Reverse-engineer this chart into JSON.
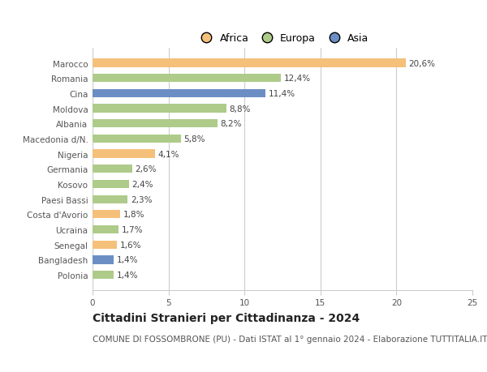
{
  "categories": [
    "Polonia",
    "Bangladesh",
    "Senegal",
    "Ucraina",
    "Costa d'Avorio",
    "Paesi Bassi",
    "Kosovo",
    "Germania",
    "Nigeria",
    "Macedonia d/N.",
    "Albania",
    "Moldova",
    "Cina",
    "Romania",
    "Marocco"
  ],
  "values": [
    1.4,
    1.4,
    1.6,
    1.7,
    1.8,
    2.3,
    2.4,
    2.6,
    4.1,
    5.8,
    8.2,
    8.8,
    11.4,
    12.4,
    20.6
  ],
  "labels": [
    "1,4%",
    "1,4%",
    "1,6%",
    "1,7%",
    "1,8%",
    "2,3%",
    "2,4%",
    "2,6%",
    "4,1%",
    "5,8%",
    "8,2%",
    "8,8%",
    "11,4%",
    "12,4%",
    "20,6%"
  ],
  "continents": [
    "Europa",
    "Asia",
    "Africa",
    "Europa",
    "Africa",
    "Europa",
    "Europa",
    "Europa",
    "Africa",
    "Europa",
    "Europa",
    "Europa",
    "Asia",
    "Europa",
    "Africa"
  ],
  "colors": {
    "Africa": "#F5C07A",
    "Europa": "#AECB8A",
    "Asia": "#6B8FC4"
  },
  "legend_labels": [
    "Africa",
    "Europa",
    "Asia"
  ],
  "legend_colors": [
    "#F5C07A",
    "#AECB8A",
    "#6B8FC4"
  ],
  "title": "Cittadini Stranieri per Cittadinanza - 2024",
  "subtitle": "COMUNE DI FOSSOMBRONE (PU) - Dati ISTAT al 1° gennaio 2024 - Elaborazione TUTTITALIA.IT",
  "xlim": [
    0,
    25
  ],
  "xticks": [
    0,
    5,
    10,
    15,
    20,
    25
  ],
  "background_color": "#ffffff",
  "grid_color": "#cccccc",
  "bar_height": 0.55,
  "title_fontsize": 10,
  "subtitle_fontsize": 7.5,
  "label_fontsize": 7.5,
  "tick_fontsize": 7.5,
  "legend_fontsize": 9
}
